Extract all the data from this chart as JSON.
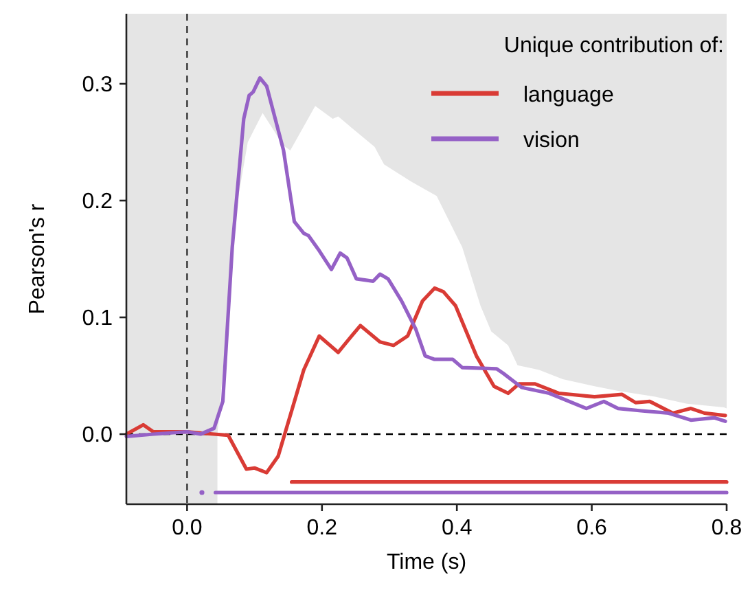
{
  "chart_data": {
    "type": "line",
    "xlabel": "Time (s)",
    "ylabel": "Pearson's r",
    "legend_title": "Unique contribution of:",
    "legend": "top right",
    "xlim": [
      -0.09,
      0.8
    ],
    "ylim": [
      -0.06,
      0.36
    ],
    "xticks": [
      {
        "value": 0,
        "label": "0.0"
      },
      0.2,
      0.4,
      0.6,
      0.8
    ],
    "yticks": [
      {
        "value": 0,
        "label": "0.0"
      },
      0.1,
      0.2,
      0.3
    ],
    "grid": false,
    "line_style": "solid",
    "marker": "none",
    "ref_lines": [
      {
        "axis": "y",
        "value": 0,
        "line_style": "dashed",
        "color": "#000000"
      },
      {
        "axis": "x",
        "value": 0,
        "line_style": "dashed",
        "color": "#333333"
      }
    ],
    "series": [
      {
        "type": "area",
        "color": "#ffffff",
        "x": [
          0.045,
          0.06,
          0.075,
          0.09,
          0.112,
          0.143,
          0.153,
          0.19,
          0.216,
          0.224,
          0.278,
          0.292,
          0.333,
          0.37,
          0.408,
          0.435,
          0.451,
          0.476,
          0.49,
          0.522,
          0.557,
          0.604,
          0.639,
          0.694,
          0.741,
          0.796,
          0.8
        ],
        "values": [
          0,
          0.1,
          0.2,
          0.25,
          0.275,
          0.247,
          0.243,
          0.281,
          0.27,
          0.272,
          0.246,
          0.231,
          0.216,
          0.204,
          0.16,
          0.11,
          0.088,
          0.076,
          0.059,
          0.055,
          0.047,
          0.041,
          0.037,
          0.032,
          0.026,
          0.023,
          0.022
        ]
      },
      {
        "name": "language",
        "color": "#d93b35",
        "x": [
          -0.09,
          -0.065,
          -0.05,
          0,
          0.04,
          0.061,
          0.088,
          0.1,
          0.118,
          0.135,
          0.153,
          0.173,
          0.196,
          0.224,
          0.241,
          0.257,
          0.286,
          0.306,
          0.327,
          0.349,
          0.367,
          0.38,
          0.398,
          0.429,
          0.455,
          0.476,
          0.492,
          0.516,
          0.551,
          0.604,
          0.645,
          0.665,
          0.686,
          0.72,
          0.747,
          0.767,
          0.798
        ],
        "values": [
          0,
          0.008,
          0.002,
          0.002,
          0,
          -0.001,
          -0.03,
          -0.029,
          -0.033,
          -0.019,
          0.016,
          0.055,
          0.084,
          0.07,
          0.082,
          0.093,
          0.079,
          0.076,
          0.084,
          0.114,
          0.125,
          0.122,
          0.11,
          0.067,
          0.041,
          0.035,
          0.043,
          0.043,
          0.035,
          0.032,
          0.034,
          0.027,
          0.028,
          0.018,
          0.022,
          0.018,
          0.016
        ]
      },
      {
        "name": "vision",
        "color": "#9561c6",
        "x": [
          -0.09,
          -0.05,
          0,
          0.02,
          0.04,
          0.053,
          0.067,
          0.084,
          0.092,
          0.098,
          0.108,
          0.118,
          0.143,
          0.159,
          0.173,
          0.18,
          0.196,
          0.214,
          0.227,
          0.237,
          0.251,
          0.276,
          0.286,
          0.298,
          0.318,
          0.339,
          0.353,
          0.367,
          0.394,
          0.408,
          0.459,
          0.469,
          0.496,
          0.537,
          0.592,
          0.618,
          0.639,
          0.673,
          0.714,
          0.747,
          0.782,
          0.798
        ],
        "values": [
          -0.002,
          0,
          0.002,
          0,
          0.005,
          0.028,
          0.16,
          0.27,
          0.29,
          0.293,
          0.305,
          0.298,
          0.243,
          0.182,
          0.172,
          0.17,
          0.157,
          0.141,
          0.155,
          0.151,
          0.133,
          0.131,
          0.137,
          0.133,
          0.114,
          0.09,
          0.067,
          0.064,
          0.064,
          0.057,
          0.056,
          0.052,
          0.04,
          0.035,
          0.022,
          0.028,
          0.022,
          0.02,
          0.018,
          0.012,
          0.014,
          0.011
        ]
      },
      {
        "color": "#d93b35",
        "x": [
          0.155,
          0.8
        ],
        "values": [
          -0.041,
          -0.041
        ]
      },
      {
        "color": "#9561c6",
        "x": [
          0.042,
          0.8
        ],
        "values": [
          -0.05,
          -0.05
        ]
      },
      {
        "type": "scatter",
        "marker": "circle",
        "color": "#9561c6",
        "x": [
          0.022
        ],
        "values": [
          -0.05
        ]
      }
    ]
  }
}
